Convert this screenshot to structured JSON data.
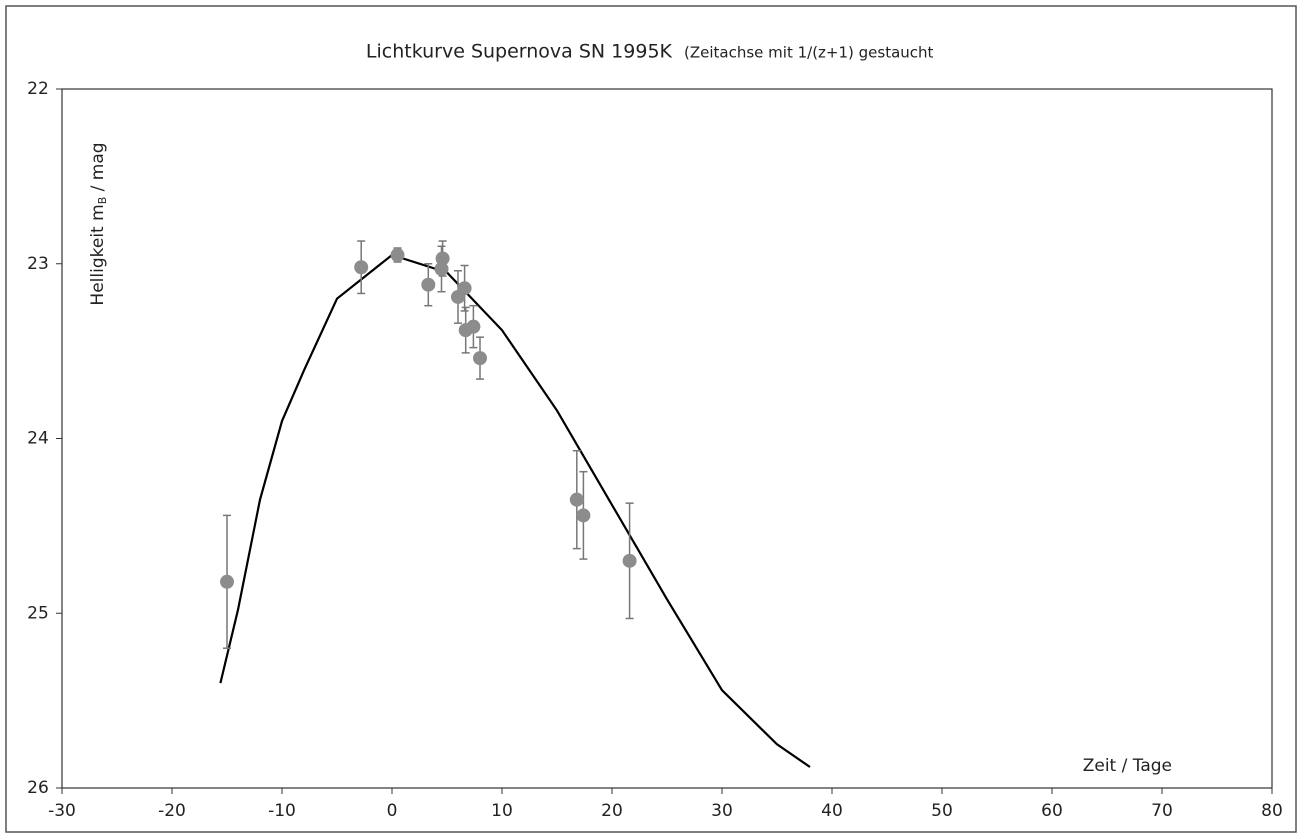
{
  "chart_data": {
    "type": "scatter",
    "title": "Lichtkurve Supernova SN 1995K",
    "subtitle": "(Zeitachse mit 1/(z+1) gestaucht",
    "ylabel_main": "Helligkeit  m",
    "ylabel_sub": "B",
    "ylabel_unit": " / mag",
    "xlabel": "Zeit / Tage",
    "xlim": [
      -30,
      80
    ],
    "xticks": [
      -30,
      -20,
      -10,
      0,
      10,
      20,
      30,
      40,
      50,
      60,
      70,
      80
    ],
    "ylim": [
      22,
      26
    ],
    "yticks": [
      22,
      23,
      24,
      25,
      26
    ],
    "y_inverted": true,
    "points": {
      "color": "#8c8c8c",
      "x": [
        -15,
        -2.8,
        0.5,
        3.3,
        4.6,
        4.5,
        6,
        6.6,
        6.7,
        7.4,
        8,
        16.8,
        17.4,
        21.6
      ],
      "y": [
        24.82,
        23.02,
        22.95,
        23.12,
        22.97,
        23.03,
        23.19,
        23.14,
        23.38,
        23.36,
        23.54,
        24.35,
        24.44,
        24.7
      ],
      "yerr": [
        0.38,
        0.15,
        0.04,
        0.12,
        0.1,
        0.13,
        0.15,
        0.13,
        0.13,
        0.12,
        0.12,
        0.28,
        0.25,
        0.33
      ]
    },
    "curve": {
      "color": "#000000",
      "x": [
        -15.6,
        -14,
        -12,
        -10,
        -8,
        -5,
        0,
        5,
        10,
        15,
        20,
        25,
        30,
        35,
        38
      ],
      "y": [
        25.4,
        24.98,
        24.35,
        23.9,
        23.61,
        23.2,
        22.95,
        23.05,
        23.38,
        23.84,
        24.38,
        24.92,
        25.44,
        25.75,
        25.88
      ]
    }
  }
}
